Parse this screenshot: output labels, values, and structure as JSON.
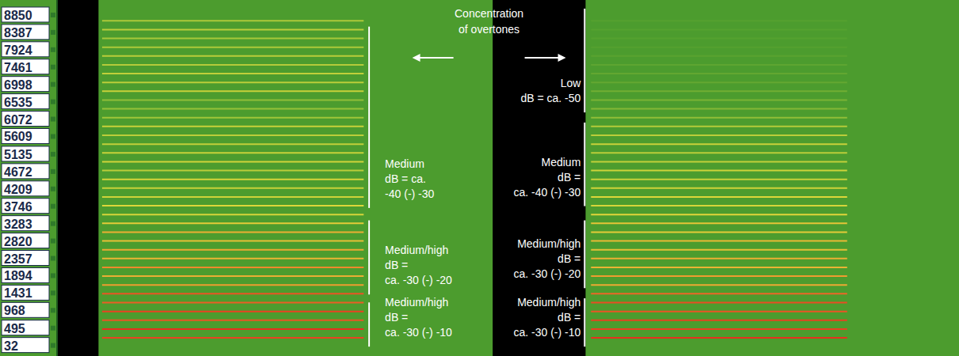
{
  "chart_data": {
    "type": "spectrogram",
    "tick_labels": "y",
    "xlim": [
      0,
      100
    ],
    "ylim": [
      -250,
      9250
    ],
    "yticks": [
      32,
      495,
      968,
      1431,
      1894,
      2357,
      2820,
      3283,
      3746,
      4209,
      4672,
      5135,
      5609,
      6072,
      6535,
      6998,
      7461,
      7924,
      8387,
      8850
    ],
    "color_range": [
      -60,
      -10
    ],
    "silences": [
      [
        0,
        4.6
      ],
      [
        48.3,
        58.6
      ]
    ],
    "segments": [
      {
        "x": [
          5,
          34
        ],
        "frequencies": [
          235,
          470,
          705,
          940,
          1175,
          1410,
          1645,
          1880,
          2115,
          2350,
          2585,
          2820,
          3055,
          3290,
          3525,
          3760,
          3995,
          4230,
          4465,
          4700,
          4935,
          5170,
          5405,
          5640,
          5875,
          6110,
          6345,
          6580,
          6815,
          7050,
          7285,
          7520,
          7755,
          7990,
          8225,
          8460,
          8695
        ],
        "db": [
          -12,
          -10,
          -14,
          -12,
          -15,
          -14,
          -22,
          -25,
          -20,
          -26,
          -24,
          -28,
          -25,
          -30,
          -34,
          -33,
          -35,
          -36,
          -34,
          -38,
          -35,
          -36,
          -37,
          -38,
          -36,
          -42,
          -44,
          -45,
          -36,
          -38,
          -37,
          -39,
          -38,
          -40,
          -41,
          -38,
          -40
        ]
      },
      {
        "x": [
          59.2,
          87.6
        ],
        "frequencies": [
          235,
          470,
          705,
          940,
          1175,
          1410,
          1645,
          1880,
          2115,
          2350,
          2585,
          2820,
          3055,
          3290,
          3525,
          3760,
          3995,
          4230,
          4465,
          4700,
          4935,
          5170,
          5405,
          5640,
          5875,
          6110,
          6345,
          6580,
          6815,
          7050,
          7285,
          7520,
          7755,
          7990,
          8225,
          8460,
          8695
        ],
        "db": [
          -10,
          -12,
          -12,
          -14,
          -13,
          -16,
          -24,
          -22,
          -26,
          -25,
          -28,
          -27,
          -30,
          -29,
          -32,
          -34,
          -33,
          -35,
          -36,
          -35,
          -37,
          -38,
          -36,
          -38,
          -39,
          -45,
          -48,
          -50,
          -52,
          -55,
          -55,
          -56,
          -57,
          -58,
          -58,
          -58,
          -58
        ]
      }
    ],
    "annotations": [
      {
        "text": [
          "Concentration",
          "of overtones"
        ],
        "x": 47.9
      },
      {
        "text": [
          "Medium",
          "dB = ca.",
          "-40 (-) -30"
        ],
        "x": 34.6,
        "span": [
          3700,
          8540
        ]
      },
      {
        "text": [
          "Medium/high",
          "dB =",
          "ca. -30 (-) -20"
        ],
        "x": 34.6,
        "span": [
          1390,
          3370
        ]
      },
      {
        "text": [
          "Medium/high",
          "dB =",
          "ca. -30 (-) -10"
        ],
        "x": 34.6,
        "span": [
          0,
          1180
        ]
      },
      {
        "text": [
          "Low",
          "dB = ca. -50"
        ],
        "x": 58.5,
        "span": [
          6250,
          9020
        ]
      },
      {
        "text": [
          "Medium",
          "dB =",
          "ca. -40 (-) -30"
        ],
        "x": 58.5,
        "span": [
          3750,
          5980
        ]
      },
      {
        "text": [
          "Medium/high",
          "dB =",
          "ca. -30 (-) -20"
        ],
        "x": 58.5,
        "span": [
          1560,
          3370
        ]
      },
      {
        "text": [
          "Medium/high",
          "dB =",
          "ca. -30 (-) -10"
        ],
        "x": 58.5,
        "span": [
          0,
          1290
        ]
      }
    ]
  }
}
